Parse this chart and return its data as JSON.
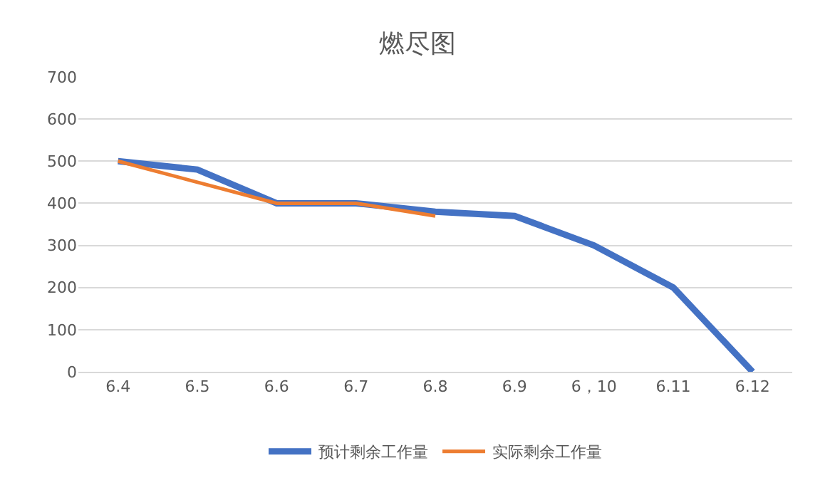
{
  "chart_data": {
    "type": "line",
    "title": "燃尽图",
    "categories": [
      "6.4",
      "6.5",
      "6.6",
      "6.7",
      "6.8",
      "6.9",
      "6，10",
      "6.11",
      "6.12"
    ],
    "series": [
      {
        "name": "预计剩余工作量",
        "color": "#4472c4",
        "values": [
          500,
          480,
          400,
          400,
          380,
          370,
          300,
          200,
          0
        ]
      },
      {
        "name": "实际剩余工作量",
        "color": "#ed7d31",
        "values": [
          500,
          450,
          400,
          400,
          370,
          null,
          null,
          null,
          null
        ]
      }
    ],
    "ylim": [
      0,
      700
    ],
    "yticks": [
      0,
      100,
      200,
      300,
      400,
      500,
      600,
      700
    ],
    "grid": "y",
    "legend": "bottom",
    "marker": "none",
    "line_style": "solid"
  }
}
